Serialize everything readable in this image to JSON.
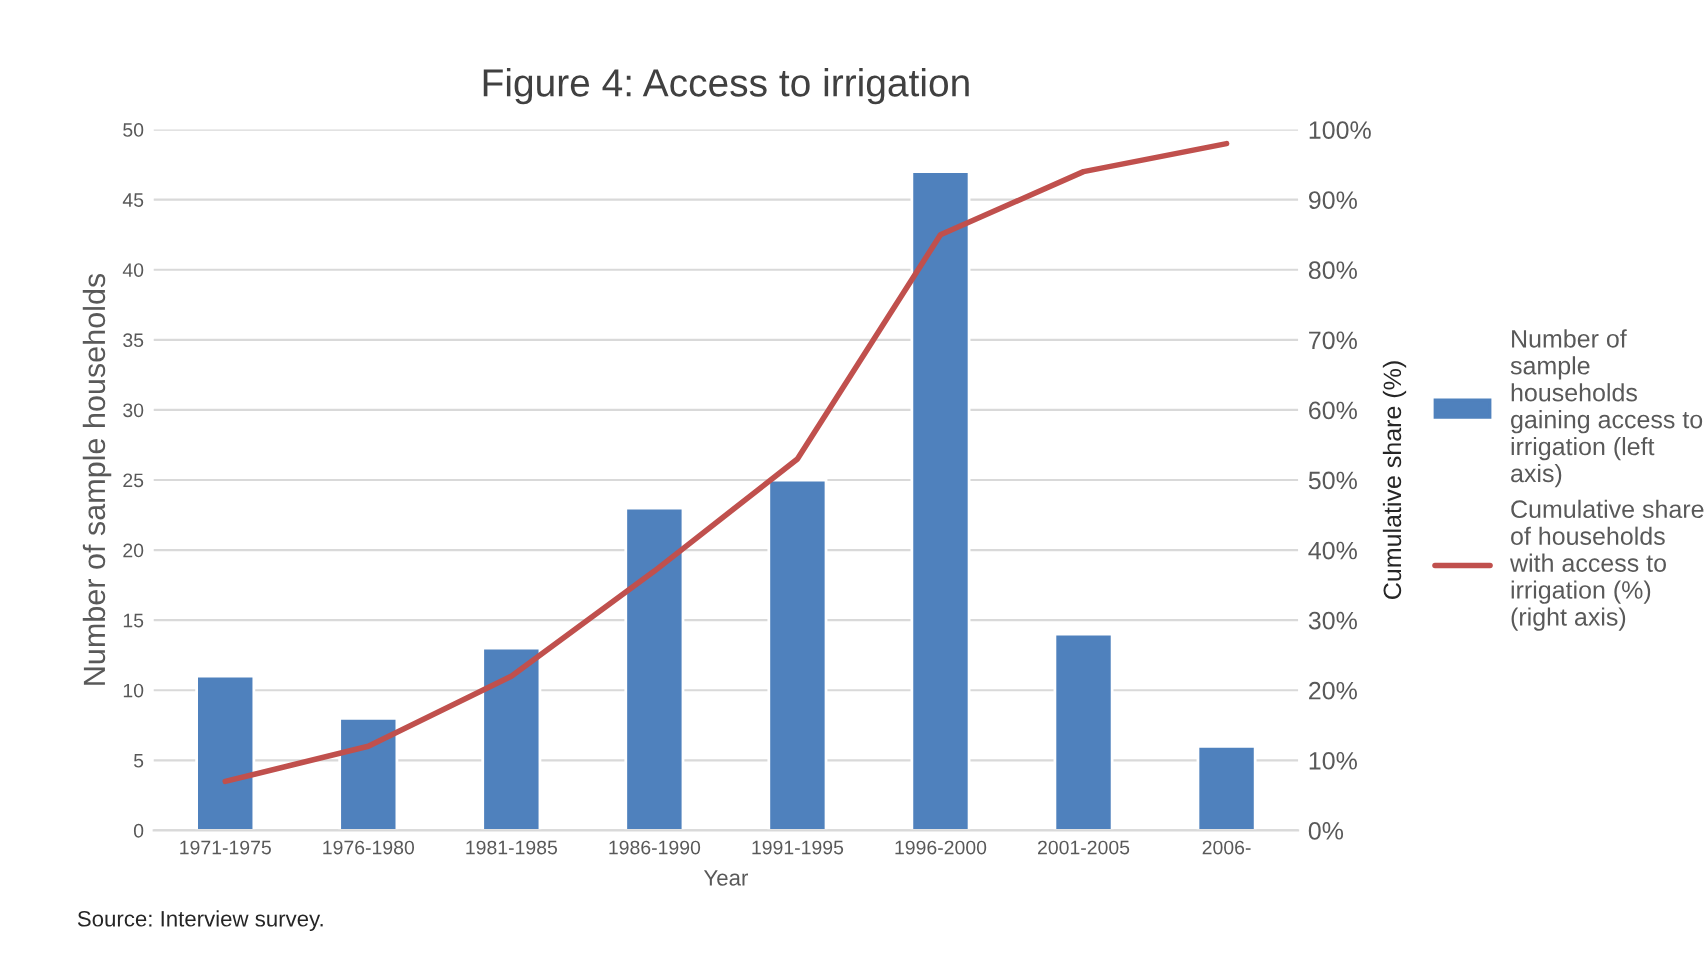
{
  "chart_data": {
    "type": "bar",
    "title": "Figure 4: Access to irrigation",
    "xlabel": "Year",
    "ylabel": "Number of sample households",
    "y2label": "Cumulative share (%)",
    "categories": [
      "1971-1975",
      "1976-1980",
      "1981-1985",
      "1986-1990",
      "1991-1995",
      "1996-2000",
      "2001-2005",
      "2006-"
    ],
    "series": [
      {
        "name": "Number of\nsample\nhouseholds\ngaining access to\nirrigation (left\naxis)",
        "color": "#4f81bd",
        "values": [
          11,
          8,
          13,
          23,
          25,
          47,
          14,
          6
        ]
      },
      {
        "name": "Cumulative share\nof households\nwith access to\nirrigation (%)\n(right axis)",
        "type": "line",
        "axis": "y2",
        "color": "#c0504d",
        "values": [
          7,
          12,
          22,
          37,
          53,
          85,
          94,
          98
        ]
      }
    ],
    "ylim": [
      0,
      50
    ],
    "yticks": [
      0,
      5,
      10,
      15,
      20,
      25,
      30,
      35,
      40,
      45,
      50
    ],
    "y2lim": [
      0,
      100
    ],
    "y2ticks": [
      {
        "value": 0,
        "label": "0%"
      },
      {
        "value": 10,
        "label": "10%"
      },
      {
        "value": 20,
        "label": "20%"
      },
      {
        "value": 30,
        "label": "30%"
      },
      {
        "value": 40,
        "label": "40%"
      },
      {
        "value": 50,
        "label": "50%"
      },
      {
        "value": 60,
        "label": "60%"
      },
      {
        "value": 70,
        "label": "70%"
      },
      {
        "value": 80,
        "label": "80%"
      },
      {
        "value": 90,
        "label": "90%"
      },
      {
        "value": 100,
        "label": "100%"
      }
    ],
    "grid": "y",
    "legend": "right",
    "annotations": [
      "Source: Interview survey."
    ]
  }
}
